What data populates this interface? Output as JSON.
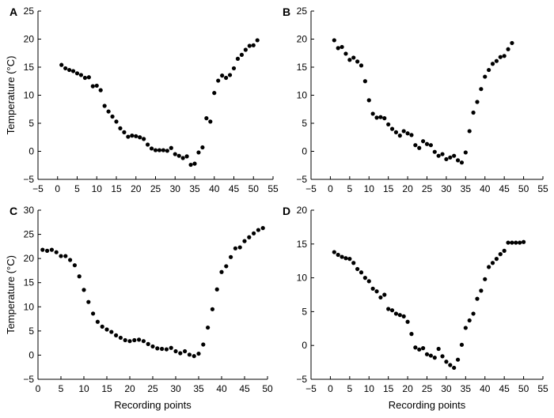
{
  "chart_data": [
    {
      "panel": "A",
      "type": "scatter",
      "xlabel": "",
      "ylabel": "Temperature (°C)",
      "xlim": [
        -5,
        55
      ],
      "ylim": [
        -5,
        25
      ],
      "xticks": [
        -5,
        0,
        5,
        10,
        15,
        20,
        25,
        30,
        35,
        40,
        45,
        50,
        55
      ],
      "yticks": [
        -5,
        0,
        5,
        10,
        15,
        20,
        25
      ],
      "x": [
        1,
        2,
        3,
        4,
        5,
        6,
        7,
        8,
        9,
        10,
        11,
        12,
        13,
        14,
        15,
        16,
        17,
        18,
        19,
        20,
        21,
        22,
        23,
        24,
        25,
        26,
        27,
        28,
        29,
        30,
        31,
        32,
        33,
        34,
        35,
        36,
        37,
        38,
        39,
        40,
        41,
        42,
        43,
        44,
        45,
        46,
        47,
        48,
        49,
        50,
        51,
        52
      ],
      "y": [
        15.4,
        14.8,
        14.5,
        14.3,
        13.9,
        13.6,
        13.1,
        13.2,
        11.6,
        11.7,
        10.9,
        8.1,
        7.1,
        6.2,
        5.3,
        4.1,
        3.4,
        2.6,
        2.8,
        2.7,
        2.5,
        2.2,
        1.2,
        0.5,
        0.2,
        0.2,
        0.2,
        0.1,
        0.6,
        -0.5,
        -0.8,
        -1.2,
        -0.9,
        -2.4,
        -2.2,
        -0.2,
        0.7,
        5.9,
        5.3,
        10.4,
        12.6,
        13.5,
        13.1,
        13.6,
        14.8,
        16.5,
        17.2,
        18.1,
        18.8,
        18.9,
        19.8,
        null
      ]
    },
    {
      "panel": "B",
      "type": "scatter",
      "xlabel": "",
      "ylabel": "",
      "xlim": [
        -5,
        55
      ],
      "ylim": [
        -5,
        25
      ],
      "xticks": [
        -5,
        0,
        5,
        10,
        15,
        20,
        25,
        30,
        35,
        40,
        45,
        50,
        55
      ],
      "yticks": [
        -5,
        0,
        5,
        10,
        15,
        20,
        25
      ],
      "x": [
        1,
        2,
        3,
        4,
        5,
        6,
        7,
        8,
        9,
        10,
        11,
        12,
        13,
        14,
        15,
        16,
        17,
        18,
        19,
        20,
        21,
        22,
        23,
        24,
        25,
        26,
        27,
        28,
        29,
        30,
        31,
        32,
        33,
        34,
        35,
        36,
        37,
        38,
        39,
        40,
        41,
        42,
        43,
        44,
        45,
        46,
        47
      ],
      "y": [
        19.8,
        18.4,
        18.6,
        17.4,
        16.3,
        16.7,
        16.0,
        15.3,
        12.5,
        9.1,
        6.7,
        6.0,
        6.1,
        5.9,
        4.8,
        4.0,
        3.4,
        2.8,
        3.6,
        3.2,
        2.9,
        1.1,
        0.6,
        1.8,
        1.3,
        1.1,
        -0.1,
        -0.8,
        -0.5,
        -1.4,
        -1.1,
        -0.8,
        -1.6,
        -2.0,
        -0.2,
        3.6,
        6.9,
        8.8,
        11.1,
        13.3,
        14.5,
        15.6,
        16.1,
        16.8,
        17.0,
        18.2,
        19.3
      ]
    },
    {
      "panel": "C",
      "type": "scatter",
      "xlabel": "Recording points",
      "ylabel": "Temperature (°C)",
      "xlim": [
        0,
        50
      ],
      "ylim": [
        -5,
        30
      ],
      "xticks": [
        0,
        5,
        10,
        15,
        20,
        25,
        30,
        35,
        40,
        45,
        50
      ],
      "yticks": [
        -5,
        0,
        5,
        10,
        15,
        20,
        25,
        30
      ],
      "x": [
        1,
        2,
        3,
        4,
        5,
        6,
        7,
        8,
        9,
        10,
        11,
        12,
        13,
        14,
        15,
        16,
        17,
        18,
        19,
        20,
        21,
        22,
        23,
        24,
        25,
        26,
        27,
        28,
        29,
        30,
        31,
        32,
        33,
        34,
        35,
        36,
        37,
        38,
        39,
        40,
        41,
        42,
        43,
        44,
        45,
        46,
        47,
        48,
        49
      ],
      "y": [
        21.8,
        21.6,
        21.8,
        21.3,
        20.5,
        20.5,
        19.7,
        18.6,
        16.3,
        13.5,
        11.0,
        8.6,
        6.9,
        5.9,
        5.3,
        4.8,
        4.1,
        3.6,
        3.1,
        2.9,
        3.1,
        3.2,
        2.9,
        2.3,
        1.8,
        1.4,
        1.3,
        1.2,
        1.5,
        0.8,
        0.4,
        0.8,
        0.1,
        -0.2,
        0.3,
        2.2,
        5.7,
        9.5,
        13.6,
        17.2,
        18.4,
        20.3,
        22.1,
        22.3,
        23.6,
        24.4,
        25.2,
        25.9,
        26.3
      ]
    },
    {
      "panel": "D",
      "type": "scatter",
      "xlabel": "Recording points",
      "ylabel": "",
      "xlim": [
        -5,
        55
      ],
      "ylim": [
        -5,
        20
      ],
      "xticks": [
        -5,
        0,
        5,
        10,
        15,
        20,
        25,
        30,
        35,
        40,
        45,
        50,
        55
      ],
      "yticks": [
        -5,
        0,
        5,
        10,
        15,
        20
      ],
      "x": [
        1,
        2,
        3,
        4,
        5,
        6,
        7,
        8,
        9,
        10,
        11,
        12,
        13,
        14,
        15,
        16,
        17,
        18,
        19,
        20,
        21,
        22,
        23,
        24,
        25,
        26,
        27,
        28,
        29,
        30,
        31,
        32,
        33,
        34,
        35,
        36,
        37,
        38,
        39,
        40,
        41,
        42,
        43,
        44,
        45,
        46,
        47,
        48,
        49,
        50
      ],
      "y": [
        13.8,
        13.4,
        13.1,
        12.9,
        12.8,
        12.2,
        11.3,
        10.8,
        10.0,
        9.5,
        8.4,
        8.0,
        7.1,
        7.5,
        5.4,
        5.2,
        4.7,
        4.5,
        4.3,
        3.5,
        1.7,
        -0.3,
        -0.6,
        -0.4,
        -1.3,
        -1.5,
        -1.8,
        -0.5,
        -1.6,
        -2.4,
        -2.9,
        -3.3,
        -2.1,
        0.1,
        2.6,
        3.7,
        4.7,
        6.9,
        8.1,
        9.8,
        11.6,
        12.2,
        12.8,
        13.5,
        14.0,
        15.2,
        15.2,
        15.2,
        15.2,
        15.3
      ]
    }
  ]
}
